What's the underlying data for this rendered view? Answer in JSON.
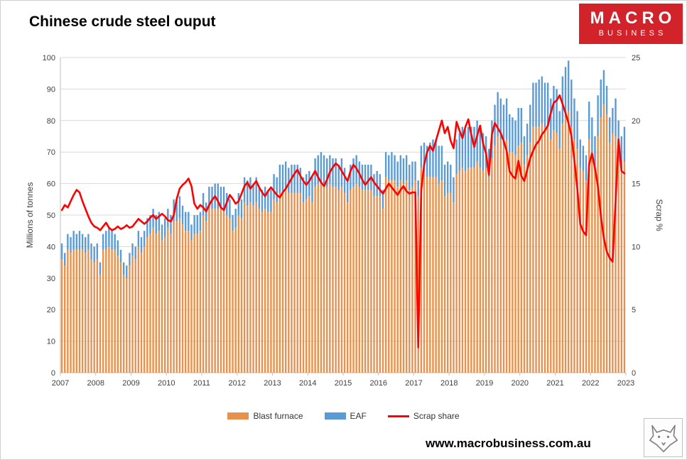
{
  "page_title": "Chinese crude steel ouput",
  "logo": {
    "line1": "MACRO",
    "line2": "BUSINESS",
    "background": "#d2232a"
  },
  "footer": {
    "website": "www.macrobusiness.com.au"
  },
  "icons": {
    "wolf_logo": "wolf-logo"
  },
  "chart_data": {
    "type": "bar",
    "subtype": "stacked-monthly-bars-with-line",
    "title": "Chinese crude steel ouput",
    "start": "2007-01",
    "frequency": "monthly",
    "x_tick_labels": [
      "2007",
      "2008",
      "2009",
      "2010",
      "2011",
      "2012",
      "2013",
      "2014",
      "2015",
      "2016",
      "2017",
      "2018",
      "2019",
      "2020",
      "2021",
      "2022",
      "2023"
    ],
    "ylabel_left": "Millions of tonnes",
    "ylim_left": [
      0,
      100
    ],
    "ytick_step_left": 10,
    "ylabel_right": "Scrap %",
    "ylim_right": [
      0,
      25
    ],
    "ytick_step_right": 5,
    "grid": true,
    "legend_position": "bottom",
    "colors": {
      "gridline": "#d9d9d9",
      "axis": "#bfbfbf",
      "tick_text": "#404040"
    },
    "series": [
      {
        "name": "Blast furnace",
        "type": "bar",
        "stack": "output",
        "axis": "left",
        "color": "#E8914D",
        "values": [
          36,
          34,
          39,
          38,
          39,
          39,
          39,
          39,
          38,
          39,
          36,
          35,
          36,
          31,
          39,
          39,
          40,
          39,
          39,
          37,
          35,
          31,
          30,
          34,
          37,
          36,
          40,
          38,
          40,
          43,
          44,
          46,
          44,
          45,
          42,
          43,
          46,
          44,
          48,
          48,
          49,
          47,
          45,
          45,
          42,
          44,
          44,
          45,
          50,
          48,
          52,
          52,
          52,
          52,
          52,
          52,
          50,
          49,
          45,
          46,
          50,
          49,
          54,
          53,
          54,
          53,
          54,
          52,
          51,
          52,
          51,
          51,
          55,
          54,
          57,
          57,
          58,
          57,
          57,
          57,
          57,
          57,
          54,
          55,
          56,
          54,
          59,
          60,
          60,
          60,
          59,
          60,
          59,
          59,
          58,
          59,
          57,
          54,
          58,
          59,
          60,
          59,
          58,
          58,
          58,
          58,
          56,
          56,
          56,
          52,
          62,
          61,
          61,
          61,
          59,
          61,
          60,
          61,
          58,
          59,
          61,
          56,
          65,
          64,
          62,
          62,
          62,
          62,
          60,
          61,
          56,
          57,
          57,
          54,
          63,
          64,
          65,
          64,
          65,
          65,
          65,
          67,
          65,
          64,
          65,
          62,
          68,
          72,
          75,
          74,
          72,
          74,
          70,
          70,
          69,
          72,
          73,
          66,
          69,
          73,
          78,
          78,
          78,
          79,
          78,
          78,
          74,
          77,
          76,
          71,
          79,
          81,
          83,
          78,
          74,
          71,
          65,
          64,
          61,
          74,
          70,
          65,
          75,
          81,
          85,
          82,
          73,
          76,
          75,
          67,
          65,
          67
        ]
      },
      {
        "name": "EAF",
        "type": "bar",
        "stack": "output",
        "axis": "left",
        "color": "#5B9BD5",
        "values": [
          5,
          4,
          5,
          5,
          6,
          5,
          6,
          5,
          5,
          5,
          5,
          5,
          5,
          4,
          5,
          6,
          6,
          6,
          5,
          5,
          4,
          4,
          4,
          4,
          4,
          4,
          5,
          5,
          5,
          6,
          6,
          6,
          6,
          6,
          5,
          6,
          6,
          6,
          7,
          7,
          7,
          6,
          6,
          6,
          5,
          6,
          6,
          6,
          7,
          6,
          7,
          7,
          8,
          8,
          7,
          7,
          7,
          6,
          5,
          6,
          7,
          6,
          8,
          8,
          8,
          7,
          8,
          7,
          7,
          7,
          7,
          7,
          8,
          8,
          9,
          9,
          9,
          8,
          9,
          9,
          9,
          8,
          8,
          8,
          8,
          8,
          9,
          9,
          10,
          9,
          9,
          9,
          9,
          9,
          8,
          9,
          8,
          7,
          8,
          9,
          9,
          8,
          8,
          8,
          8,
          8,
          7,
          8,
          7,
          6,
          8,
          8,
          9,
          8,
          8,
          8,
          8,
          8,
          8,
          8,
          6,
          5,
          7,
          9,
          10,
          11,
          12,
          12,
          12,
          11,
          10,
          10,
          9,
          8,
          11,
          12,
          13,
          13,
          13,
          13,
          13,
          13,
          12,
          12,
          10,
          9,
          12,
          13,
          14,
          13,
          13,
          13,
          12,
          11,
          11,
          12,
          11,
          9,
          10,
          12,
          14,
          14,
          15,
          15,
          14,
          14,
          13,
          14,
          14,
          12,
          15,
          16,
          16,
          15,
          13,
          12,
          9,
          8,
          8,
          12,
          11,
          10,
          13,
          12,
          11,
          9,
          8,
          8,
          12,
          13,
          10,
          11
        ]
      },
      {
        "name": "Scrap share",
        "type": "line",
        "axis": "right",
        "color": "#FF0000",
        "values": [
          12.9,
          13.3,
          13.1,
          13.6,
          14.1,
          14.5,
          14.3,
          13.6,
          13.0,
          12.4,
          11.9,
          11.6,
          11.5,
          11.3,
          11.6,
          11.9,
          11.5,
          11.3,
          11.4,
          11.6,
          11.4,
          11.5,
          11.7,
          11.5,
          11.6,
          11.9,
          12.2,
          12.0,
          11.8,
          12.0,
          12.3,
          12.5,
          12.2,
          12.4,
          12.6,
          12.4,
          12.1,
          12.0,
          12.5,
          13.8,
          14.6,
          14.9,
          15.1,
          15.4,
          14.8,
          13.4,
          13.0,
          13.3,
          13.1,
          12.8,
          13.3,
          13.7,
          14.0,
          13.6,
          13.1,
          12.9,
          13.5,
          14.1,
          13.8,
          13.4,
          13.6,
          14.2,
          14.8,
          15.1,
          14.6,
          14.9,
          15.2,
          14.7,
          14.3,
          14.0,
          14.4,
          14.7,
          14.4,
          14.1,
          13.9,
          14.3,
          14.6,
          15.0,
          15.4,
          15.8,
          16.1,
          15.6,
          15.2,
          14.9,
          15.2,
          15.6,
          16.0,
          15.5,
          15.1,
          14.8,
          15.3,
          15.9,
          16.3,
          16.6,
          16.4,
          16.0,
          15.6,
          15.2,
          16.0,
          16.5,
          16.2,
          15.8,
          15.3,
          14.9,
          15.2,
          15.5,
          15.1,
          14.8,
          14.5,
          14.2,
          14.6,
          15.0,
          14.7,
          14.4,
          14.1,
          14.5,
          14.8,
          14.4,
          14.2,
          14.3,
          14.3,
          2.0,
          14.5,
          16.5,
          17.5,
          18.0,
          17.6,
          18.4,
          19.2,
          20.0,
          19.0,
          19.5,
          18.4,
          17.8,
          19.9,
          19.2,
          18.6,
          19.5,
          20.1,
          18.9,
          17.9,
          18.8,
          19.6,
          18.2,
          17.4,
          15.7,
          18.9,
          19.8,
          19.4,
          19.0,
          18.4,
          17.6,
          16.0,
          15.6,
          15.4,
          16.8,
          15.6,
          15.2,
          16.1,
          17.0,
          17.6,
          18.1,
          18.4,
          18.9,
          19.2,
          19.6,
          20.6,
          21.4,
          21.6,
          22.0,
          21.3,
          20.6,
          19.8,
          18.8,
          16.9,
          14.6,
          11.8,
          11.2,
          10.9,
          16.5,
          17.4,
          16.2,
          14.8,
          12.4,
          10.7,
          9.6,
          9.1,
          8.8,
          13.6,
          18.5,
          16.0,
          15.8
        ]
      }
    ]
  }
}
